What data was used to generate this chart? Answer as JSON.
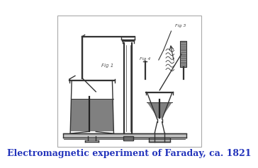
{
  "title": "Electromagnetic experiment of Faraday, ca. 1821",
  "title_color": "#2233bb",
  "title_fontsize": 9.0,
  "bg_color": "#ffffff",
  "line_color": "#333333",
  "fill_color": "#888888",
  "fill_light": "#bbbbbb",
  "fig_width": 3.15,
  "fig_height": 3.2,
  "panel_bg": "#f8f8f8"
}
